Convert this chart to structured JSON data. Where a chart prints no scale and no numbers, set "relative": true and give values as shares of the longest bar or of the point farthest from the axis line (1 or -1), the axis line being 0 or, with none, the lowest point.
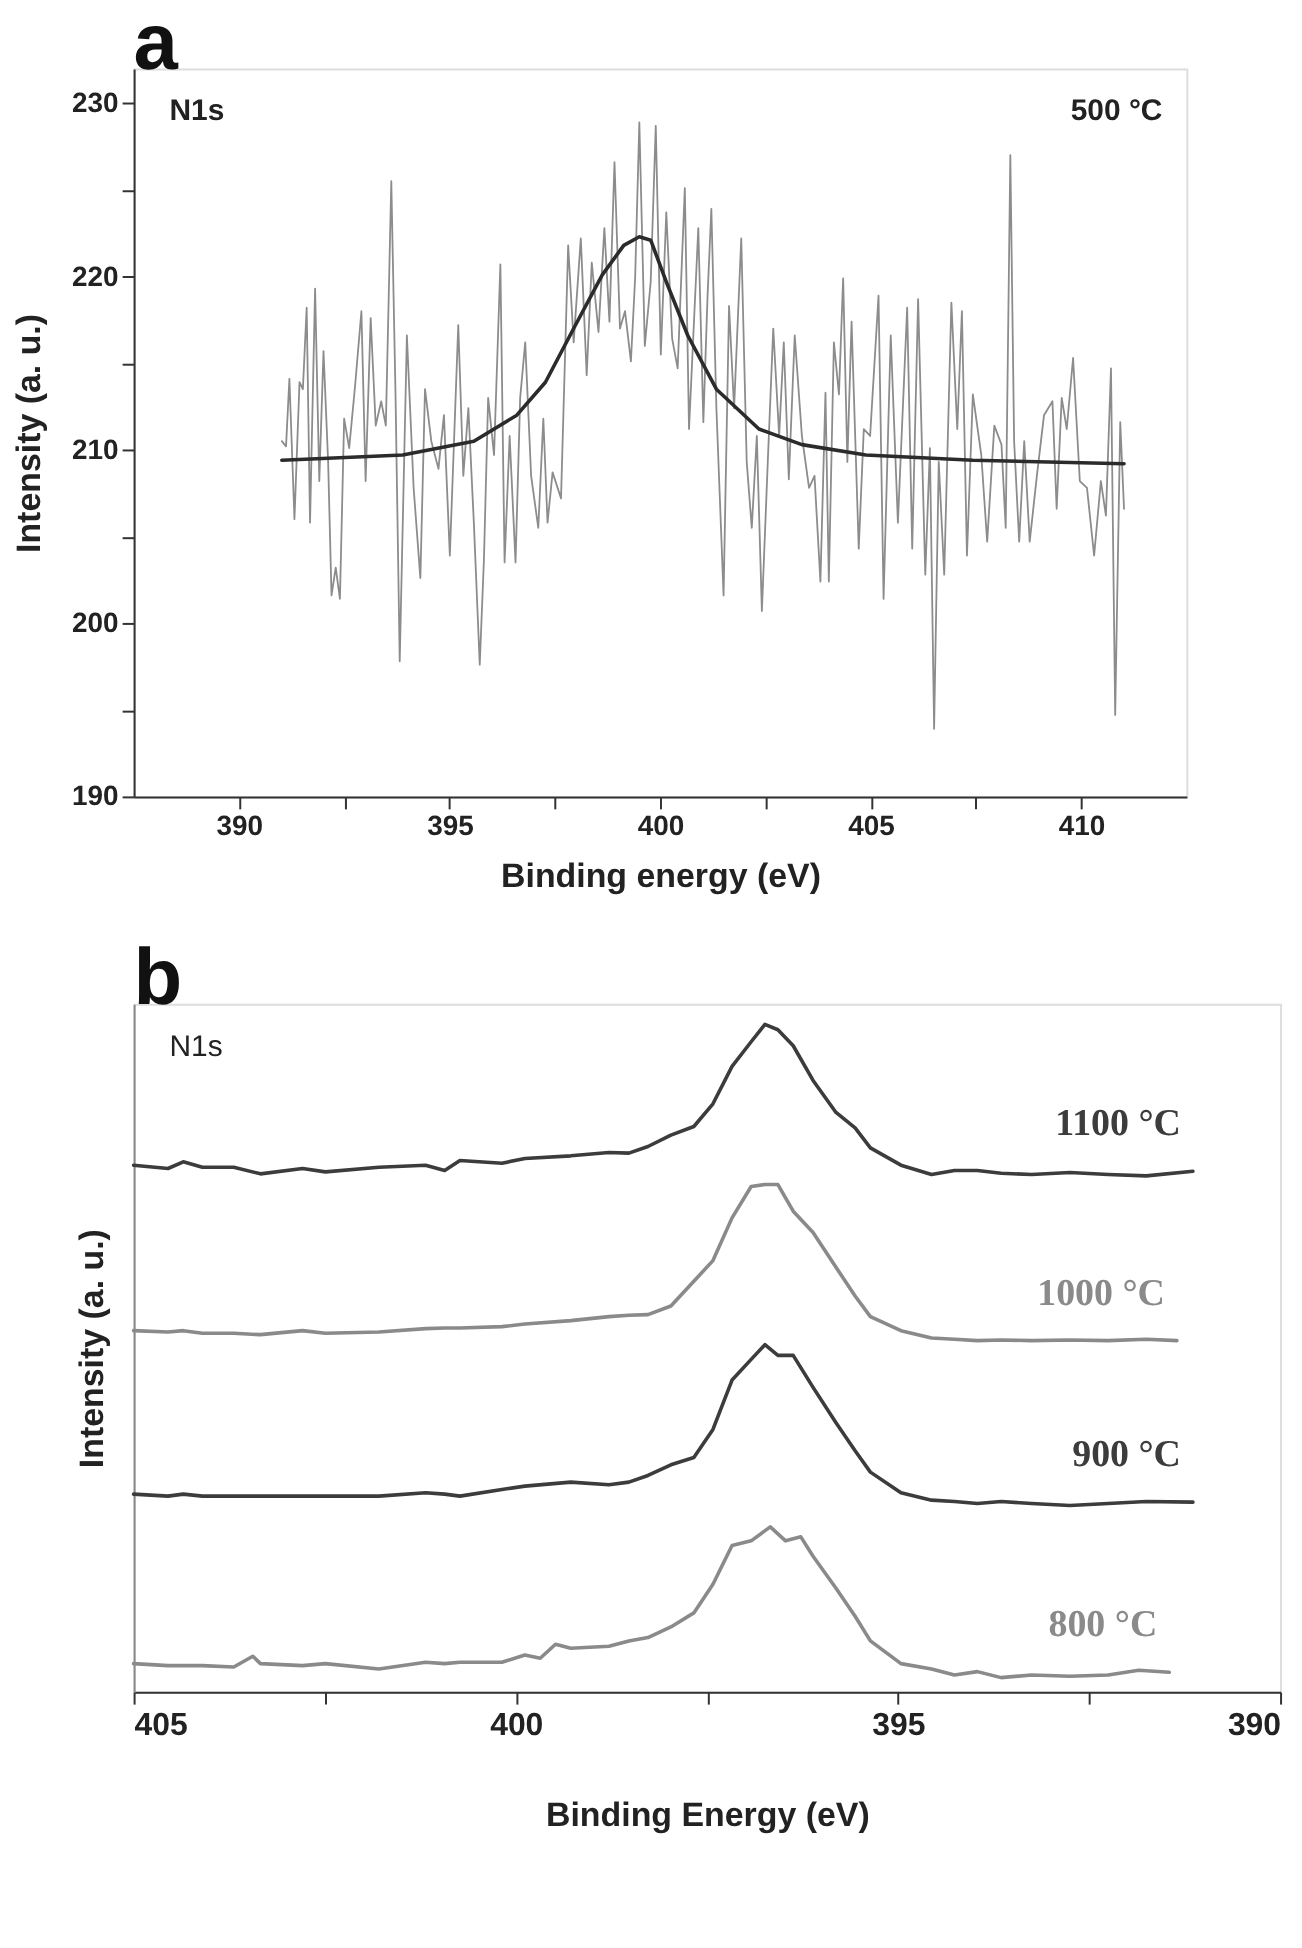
{
  "chart_data": [
    {
      "type": "line",
      "title": "a",
      "xlabel": "Binding energy (eV)",
      "ylabel": "Intensity (a. u.)",
      "xlim": [
        387.5,
        412.5
      ],
      "ylim": [
        190,
        232
      ],
      "xticks": [
        390,
        {
          "value": 392.5,
          "label": null
        },
        395,
        {
          "value": 397.5,
          "label": null
        },
        400,
        {
          "value": 402.5,
          "label": null
        },
        405,
        {
          "value": 407.5,
          "label": null
        },
        410
      ],
      "yticks": [
        190,
        {
          "value": 195,
          "label": null
        },
        200,
        {
          "value": 205,
          "label": null
        },
        210,
        {
          "value": 215,
          "label": null
        },
        220,
        {
          "value": 225,
          "label": null
        },
        230
      ],
      "annotations": [
        "N1s",
        "500 °C"
      ],
      "series": [
        {
          "color": "#8c8c8c",
          "x": [
            391.02,
            391.12,
            391.2,
            391.32,
            391.44,
            391.52,
            391.61,
            391.69,
            391.81,
            391.91,
            392.01,
            392.12,
            392.2,
            392.3,
            392.4,
            392.5,
            392.62,
            392.76,
            392.91,
            393.01,
            393.13,
            393.25,
            393.38,
            393.49,
            393.62,
            393.72,
            393.82,
            393.99,
            394.15,
            394.31,
            394.42,
            394.57,
            394.74,
            394.87,
            395.01,
            395.21,
            395.33,
            395.45,
            395.58,
            395.72,
            395.82,
            395.92,
            396.06,
            396.21,
            396.31,
            396.43,
            396.57,
            396.68,
            396.8,
            396.94,
            397.11,
            397.23,
            397.33,
            397.45,
            397.65,
            397.82,
            397.95,
            398.12,
            398.26,
            398.38,
            398.54,
            398.68,
            398.8,
            398.92,
            399.05,
            399.17,
            399.31,
            399.41,
            399.51,
            399.64,
            399.78,
            399.9,
            400.02,
            400.15,
            400.29,
            400.42,
            400.59,
            400.69,
            400.8,
            400.91,
            401.03,
            401.13,
            401.22,
            401.34,
            401.51,
            401.64,
            401.76,
            401.93,
            402.06,
            402.18,
            402.3,
            402.42,
            402.56,
            402.69,
            402.83,
            402.94,
            403.06,
            403.2,
            403.37,
            403.54,
            403.67,
            403.81,
            403.93,
            404.01,
            404.13,
            404.25,
            404.35,
            404.45,
            404.55,
            404.72,
            404.84,
            404.99,
            405.19,
            405.31,
            405.48,
            405.65,
            405.87,
            405.99,
            406.13,
            406.3,
            406.41,
            406.51,
            406.62,
            406.75,
            406.92,
            407.06,
            407.17,
            407.29,
            407.43,
            407.63,
            407.77,
            407.94,
            408.11,
            408.21,
            408.32,
            408.41,
            408.53,
            408.65,
            408.78,
            408.95,
            409.12,
            409.32,
            409.42,
            409.54,
            409.66,
            409.81,
            409.97,
            410.14,
            410.31,
            410.47,
            410.59,
            410.71,
            410.81,
            410.93,
            411.02
          ],
          "values": [
            210.5,
            210.2,
            214.1,
            206.0,
            213.9,
            213.5,
            218.2,
            205.8,
            219.3,
            208.2,
            215.7,
            209.3,
            201.6,
            203.2,
            201.4,
            211.8,
            210.1,
            213.7,
            218.0,
            208.2,
            217.6,
            211.4,
            212.8,
            211.4,
            225.5,
            213.2,
            197.8,
            216.6,
            207.8,
            202.6,
            213.5,
            210.5,
            208.9,
            212.0,
            203.9,
            217.2,
            208.5,
            212.4,
            205.8,
            197.6,
            203.7,
            213.0,
            209.7,
            220.7,
            203.5,
            210.8,
            203.5,
            213.0,
            216.2,
            208.5,
            205.5,
            211.8,
            205.8,
            208.7,
            207.2,
            221.8,
            216.2,
            222.2,
            214.3,
            220.8,
            216.8,
            222.8,
            217.4,
            226.6,
            217.0,
            218.0,
            215.1,
            219.9,
            228.9,
            216.0,
            219.7,
            228.7,
            215.5,
            223.7,
            216.4,
            214.7,
            225.1,
            211.2,
            217.0,
            222.8,
            211.6,
            218.9,
            223.9,
            212.4,
            201.6,
            218.3,
            212.4,
            222.2,
            209.3,
            205.5,
            210.8,
            200.7,
            209.3,
            217.0,
            210.8,
            216.2,
            208.3,
            216.6,
            210.8,
            207.8,
            208.5,
            202.4,
            213.3,
            202.4,
            216.2,
            213.2,
            219.9,
            209.3,
            217.4,
            204.3,
            211.2,
            210.8,
            218.9,
            201.4,
            216.6,
            205.8,
            218.2,
            204.3,
            218.7,
            202.8,
            210.1,
            193.9,
            209.3,
            202.8,
            218.5,
            211.2,
            218.0,
            203.9,
            213.2,
            209.7,
            204.7,
            211.4,
            210.3,
            205.5,
            227.0,
            210.5,
            204.7,
            210.5,
            204.7,
            208.5,
            212.0,
            212.8,
            206.6,
            213.0,
            211.2,
            215.3,
            208.2,
            207.8,
            203.9,
            208.2,
            206.2,
            214.7,
            194.7,
            211.6,
            206.6
          ]
        },
        {
          "type": "line",
          "color": "#2b2b2b",
          "x": [
            391.02,
            393.89,
            395.58,
            396.6,
            397.28,
            397.95,
            398.63,
            399.14,
            399.51,
            399.78,
            400.15,
            400.66,
            401.34,
            402.35,
            403.37,
            404.89,
            407.43,
            411.02
          ],
          "values": [
            209.4,
            209.7,
            210.5,
            212.0,
            213.9,
            217.0,
            220.1,
            221.8,
            222.3,
            222.1,
            219.7,
            216.6,
            213.5,
            211.2,
            210.3,
            209.7,
            209.4,
            209.2
          ]
        }
      ]
    },
    {
      "type": "line",
      "relative": true,
      "title": "b",
      "xlabel": "Binding Energy (eV)",
      "ylabel": "Intensity (a. u.)",
      "xlim": [
        405,
        390
      ],
      "tick_labels": "x",
      "xticks": [
        405,
        {
          "value": 402.5,
          "label": null
        },
        400,
        {
          "value": 397.5,
          "label": null
        },
        395,
        {
          "value": 392.5,
          "label": null
        },
        390
      ],
      "annotations": [
        "N1s"
      ],
      "series": [
        {
          "name": "1100 °C",
          "color": "#3c3c3c",
          "x": [
            405.0,
            404.55,
            404.35,
            404.1,
            403.69,
            403.34,
            402.79,
            402.49,
            401.79,
            401.18,
            400.93,
            400.73,
            400.18,
            399.88,
            399.28,
            398.78,
            398.52,
            398.27,
            397.97,
            397.67,
            397.42,
            397.17,
            396.92,
            396.74,
            396.57,
            396.37,
            396.11,
            395.81,
            395.56,
            395.36,
            394.96,
            394.56,
            394.26,
            393.96,
            393.65,
            393.25,
            392.75,
            392.25,
            391.75,
            391.14
          ],
          "values": [
            0.789,
            0.784,
            0.794,
            0.786,
            0.786,
            0.776,
            0.784,
            0.779,
            0.786,
            0.789,
            0.781,
            0.796,
            0.792,
            0.799,
            0.803,
            0.808,
            0.807,
            0.817,
            0.834,
            0.847,
            0.881,
            0.937,
            0.974,
            1.0,
            0.992,
            0.968,
            0.916,
            0.868,
            0.845,
            0.815,
            0.789,
            0.775,
            0.781,
            0.781,
            0.777,
            0.775,
            0.778,
            0.775,
            0.773,
            0.78
          ]
        },
        {
          "name": "1000 °C",
          "color": "#8a8a8a",
          "x": [
            405.0,
            404.55,
            404.35,
            404.1,
            403.69,
            403.34,
            402.79,
            402.49,
            401.79,
            401.18,
            400.93,
            400.73,
            400.18,
            399.88,
            399.28,
            398.78,
            398.52,
            398.27,
            397.97,
            397.67,
            397.42,
            397.17,
            396.92,
            396.74,
            396.57,
            396.37,
            396.11,
            395.81,
            395.56,
            395.36,
            394.96,
            394.56,
            394.26,
            393.96,
            393.65,
            393.25,
            392.75,
            392.25,
            391.75,
            391.35
          ],
          "values": [
            0.541,
            0.539,
            0.541,
            0.537,
            0.537,
            0.535,
            0.541,
            0.537,
            0.539,
            0.544,
            0.545,
            0.545,
            0.547,
            0.551,
            0.556,
            0.562,
            0.564,
            0.565,
            0.578,
            0.615,
            0.646,
            0.71,
            0.757,
            0.76,
            0.76,
            0.72,
            0.688,
            0.636,
            0.593,
            0.562,
            0.541,
            0.53,
            0.528,
            0.526,
            0.527,
            0.526,
            0.527,
            0.526,
            0.528,
            0.526
          ]
        },
        {
          "name": "900 °C",
          "color": "#3c3c3c",
          "x": [
            405.0,
            404.55,
            404.35,
            404.1,
            403.69,
            403.34,
            402.79,
            402.49,
            401.79,
            401.18,
            400.93,
            400.73,
            400.18,
            399.88,
            399.28,
            398.78,
            398.52,
            398.27,
            397.97,
            397.67,
            397.42,
            397.17,
            396.92,
            396.74,
            396.57,
            396.37,
            396.11,
            395.81,
            395.56,
            395.36,
            394.96,
            394.56,
            394.26,
            393.96,
            393.65,
            393.25,
            392.75,
            392.25,
            391.75,
            391.14
          ],
          "values": [
            0.296,
            0.293,
            0.296,
            0.293,
            0.293,
            0.293,
            0.293,
            0.293,
            0.293,
            0.298,
            0.296,
            0.293,
            0.303,
            0.308,
            0.314,
            0.31,
            0.314,
            0.324,
            0.34,
            0.351,
            0.393,
            0.467,
            0.498,
            0.52,
            0.504,
            0.504,
            0.456,
            0.403,
            0.361,
            0.329,
            0.298,
            0.287,
            0.285,
            0.282,
            0.285,
            0.282,
            0.279,
            0.282,
            0.285,
            0.284
          ]
        },
        {
          "name": "800 °C",
          "color": "#8a8a8a",
          "x": [
            405.0,
            404.55,
            404.35,
            404.1,
            403.69,
            403.44,
            403.34,
            402.79,
            402.49,
            401.79,
            401.18,
            400.93,
            400.73,
            400.18,
            399.88,
            399.68,
            399.48,
            399.28,
            398.78,
            398.52,
            398.27,
            397.97,
            397.67,
            397.42,
            397.17,
            396.92,
            396.67,
            396.47,
            396.27,
            396.11,
            395.81,
            395.56,
            395.36,
            394.96,
            394.56,
            394.26,
            393.96,
            393.65,
            393.25,
            392.75,
            392.25,
            391.85,
            391.45
          ],
          "values": [
            0.042,
            0.039,
            0.039,
            0.039,
            0.037,
            0.053,
            0.042,
            0.039,
            0.042,
            0.034,
            0.044,
            0.042,
            0.044,
            0.044,
            0.055,
            0.05,
            0.071,
            0.065,
            0.068,
            0.076,
            0.081,
            0.097,
            0.118,
            0.161,
            0.219,
            0.226,
            0.247,
            0.226,
            0.232,
            0.203,
            0.155,
            0.113,
            0.076,
            0.042,
            0.034,
            0.025,
            0.03,
            0.021,
            0.025,
            0.023,
            0.025,
            0.032,
            0.029
          ]
        }
      ]
    }
  ]
}
